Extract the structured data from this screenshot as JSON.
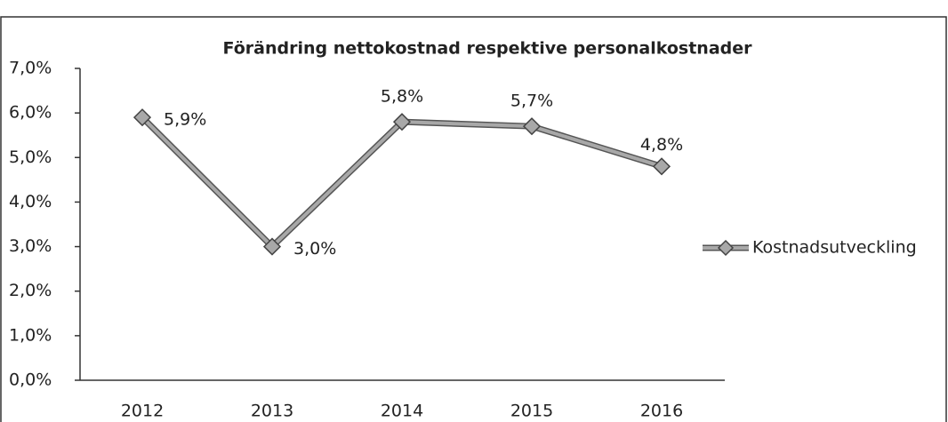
{
  "chart_data": {
    "type": "line",
    "title": "Förändring nettokostnad respektive personalkostnader",
    "categories": [
      "2012",
      "2013",
      "2014",
      "2015",
      "2016"
    ],
    "series": [
      {
        "name": "Kostnadsutveckling",
        "color": "#a8a8a8",
        "values": [
          5.9,
          3.0,
          5.8,
          5.7,
          4.8
        ],
        "value_labels": [
          "5,9%",
          "3,0%",
          "5,8%",
          "5,7%",
          "4,8%"
        ]
      }
    ],
    "ylim": [
      0,
      7
    ],
    "yticks": [
      {
        "value": 0,
        "label": "0,0%"
      },
      {
        "value": 1,
        "label": "1,0%"
      },
      {
        "value": 2,
        "label": "2,0%"
      },
      {
        "value": 3,
        "label": "3,0%"
      },
      {
        "value": 4,
        "label": "4,0%"
      },
      {
        "value": 5,
        "label": "5,0%"
      },
      {
        "value": 6,
        "label": "6,0%"
      },
      {
        "value": 7,
        "label": "7,0%"
      }
    ],
    "legend": "right"
  }
}
